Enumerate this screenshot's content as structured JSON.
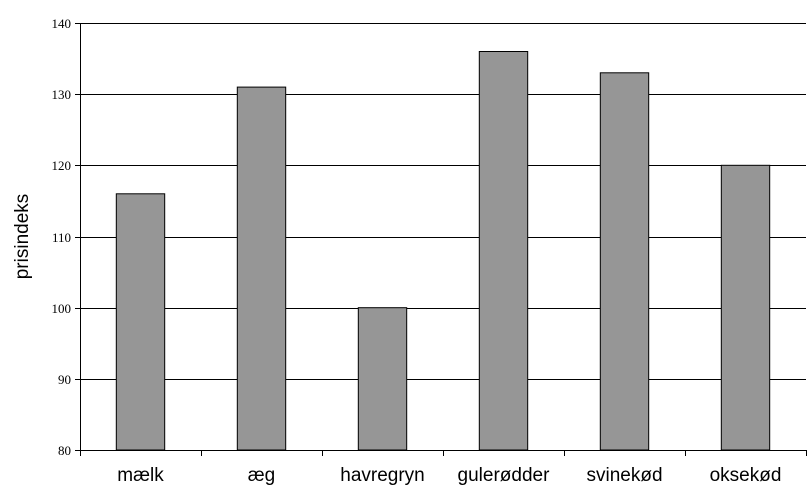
{
  "chart_data": {
    "type": "bar",
    "categories": [
      "mælk",
      "æg",
      "havregryn",
      "gulerødder",
      "svinekød",
      "oksekød"
    ],
    "values": [
      116,
      131,
      100,
      136,
      133,
      120
    ],
    "ylabel": "prisindeks",
    "xlabel": "",
    "ylim": [
      80,
      140
    ],
    "yticks": [
      80,
      90,
      100,
      110,
      120,
      130,
      140
    ],
    "grid": true,
    "bar_color": "#969696",
    "bar_border": "#000000"
  }
}
